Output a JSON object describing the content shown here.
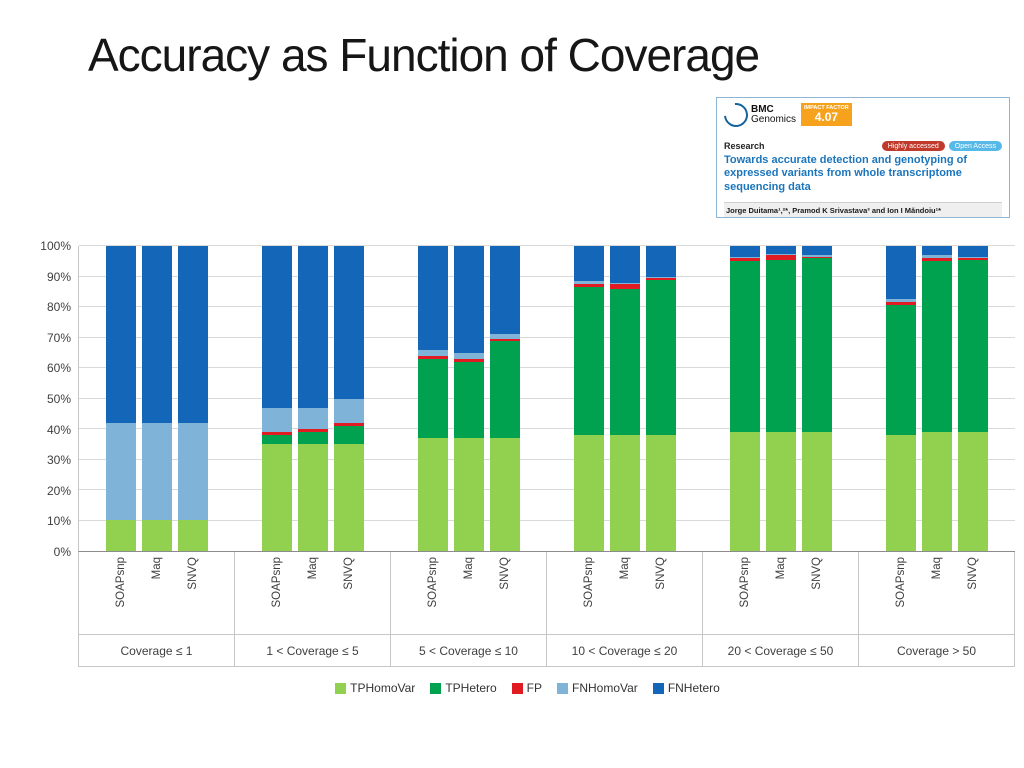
{
  "slide": {
    "title": "Accuracy as Function of Coverage"
  },
  "paper_card": {
    "journal_line1": "BMC",
    "journal_line2": "Genomics",
    "impact_label": "IMPACT FACTOR",
    "impact_value": "4.07",
    "section": "Research",
    "badge_highly_accessed": "Highly accessed",
    "badge_open_access": "Open Access",
    "title": "Towards accurate detection and genotyping of expressed variants from whole transcriptome sequencing data",
    "authors": "Jorge Duitama¹,²*, Pramod K Srivastava³ and Ion I Măndoiu¹*"
  },
  "chart_data": {
    "type": "bar",
    "stacked": true,
    "percent": true,
    "title": "Accuracy as Function of Coverage",
    "ylim": [
      0,
      100
    ],
    "grid": true,
    "legend_position": "bottom",
    "y_ticks": [
      "0%",
      "10%",
      "20%",
      "30%",
      "40%",
      "50%",
      "60%",
      "70%",
      "80%",
      "90%",
      "100%"
    ],
    "groups": [
      "Coverage ≤ 1",
      "1 < Coverage ≤ 5",
      "5 < Coverage ≤ 10",
      "10 < Coverage ≤ 20",
      "20 < Coverage ≤ 50",
      "Coverage > 50"
    ],
    "bars": [
      "SOAPsnp",
      "Maq",
      "SNVQ"
    ],
    "series": [
      {
        "name": "TPHomoVar",
        "color": "#92d050",
        "values": [
          [
            10,
            10,
            10
          ],
          [
            35,
            35,
            35
          ],
          [
            37,
            37,
            37
          ],
          [
            38,
            38,
            38
          ],
          [
            39,
            39,
            39
          ],
          [
            38,
            39,
            39
          ]
        ]
      },
      {
        "name": "TPHetero",
        "color": "#00a14f",
        "values": [
          [
            0,
            0,
            0
          ],
          [
            3,
            4,
            6
          ],
          [
            26,
            25,
            32
          ],
          [
            48.5,
            48,
            51
          ],
          [
            56,
            56.5,
            57
          ],
          [
            42.5,
            56,
            56.5
          ]
        ]
      },
      {
        "name": "FP",
        "color": "#e11b22",
        "values": [
          [
            0,
            0,
            0
          ],
          [
            1,
            1,
            1
          ],
          [
            1,
            1,
            0.5
          ],
          [
            1,
            1.5,
            0.5
          ],
          [
            1,
            1.5,
            0.5
          ],
          [
            1,
            1,
            0.5
          ]
        ]
      },
      {
        "name": "FNHomoVar",
        "color": "#7fb3d7",
        "values": [
          [
            32,
            32,
            32
          ],
          [
            8,
            7,
            8
          ],
          [
            2,
            2,
            1.5
          ],
          [
            1,
            0.5,
            0.5
          ],
          [
            0.5,
            0.5,
            0.5
          ],
          [
            1,
            1,
            0.5
          ]
        ]
      },
      {
        "name": "FNHetero",
        "color": "#1467b8",
        "values": [
          [
            58,
            58,
            58
          ],
          [
            53,
            53,
            50
          ],
          [
            34,
            35,
            29
          ],
          [
            11.5,
            12,
            10
          ],
          [
            3.5,
            2.5,
            3
          ],
          [
            17.5,
            3,
            3.5
          ]
        ]
      }
    ]
  }
}
